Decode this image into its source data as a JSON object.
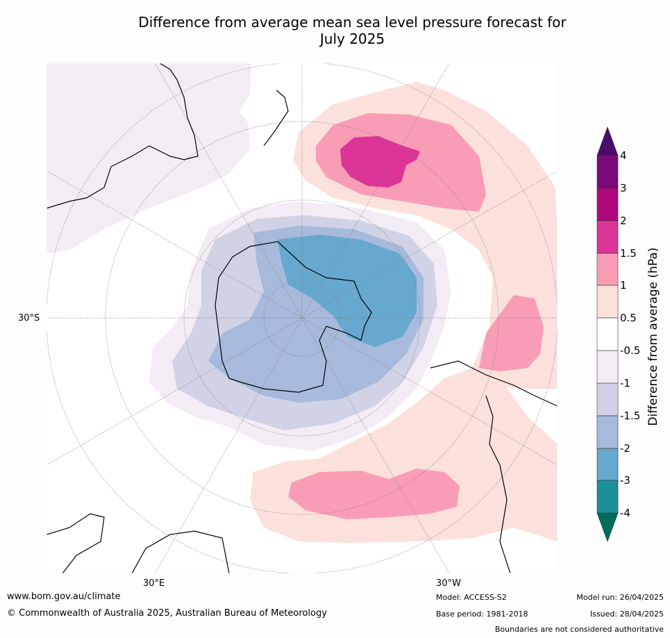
{
  "title_line1": "Difference from average mean sea level pressure forecast for",
  "title_line2": "July 2025",
  "lat_label": "30°S",
  "lon_labels": {
    "east": "30°E",
    "west": "30°W"
  },
  "colorbar": {
    "title": "Difference from average (hPa)",
    "tick_labels": [
      "4",
      "3",
      "2",
      "1.5",
      "1",
      "0.5",
      "-0.5",
      "-1",
      "-1.5",
      "-2",
      "-3",
      "-4"
    ],
    "colors": {
      "above_4": "#4a0b6b",
      "3_to_4": "#7a0a77",
      "2_to_3": "#b0077a",
      "1_5_to_2": "#dd3497",
      "1_to_1_5": "#f99db6",
      "0_5_to_1": "#fbe0dc",
      "neutral": "#ffffff",
      "m1_to_m0_5": "#f3ecf4",
      "m1_5_to_m1": "#d1d2e6",
      "m2_to_m1_5": "#a7badb",
      "m3_to_m2": "#67a8cf",
      "m4_to_m3": "#1c9099",
      "below_m4": "#016c59"
    }
  },
  "footer": {
    "website": "www.bom.gov.au/climate",
    "copyright": "© Commonwealth of Australia 2025, Australian Bureau of Meteorology",
    "model": "Model: ACCESS-S2",
    "base_period": "Base period: 1981-2018",
    "model_run": "Model run: 26/04/2025",
    "issued": "Issued: 28/04/2025",
    "disclaimer": "Boundaries are not considered authoritative"
  }
}
